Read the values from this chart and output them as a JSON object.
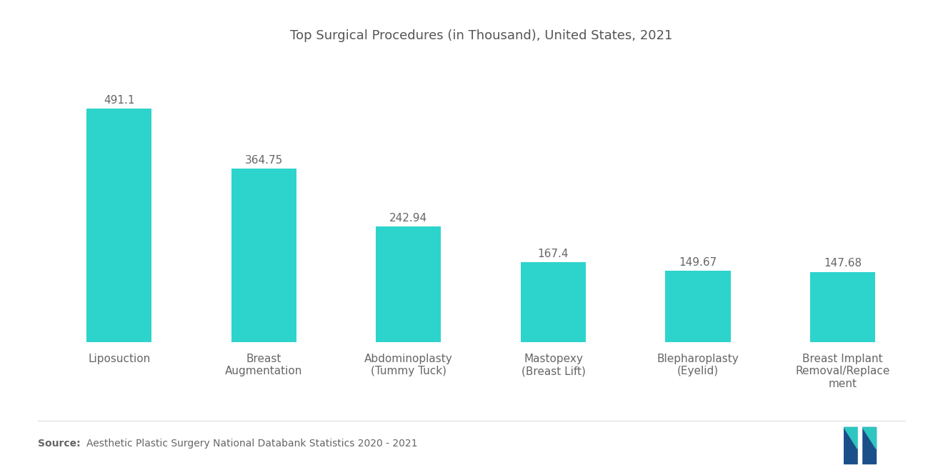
{
  "title": "Top Surgical Procedures (in Thousand), United States, 2021",
  "categories": [
    "Liposuction",
    "Breast\nAugmentation",
    "Abdominoplasty\n(Tummy Tuck)",
    "Mastopexy\n(Breast Lift)",
    "Blepharoplasty\n(Eyelid)",
    "Breast Implant\nRemoval/Replace\nment"
  ],
  "values": [
    491.1,
    364.75,
    242.94,
    167.4,
    149.67,
    147.68
  ],
  "bar_color": "#2DD4CC",
  "background_color": "#FFFFFF",
  "title_fontsize": 13,
  "label_fontsize": 11,
  "value_fontsize": 11,
  "source_bold": "Source:",
  "source_text": "  Aesthetic Plastic Surgery National Databank Statistics 2020 - 2021",
  "source_fontsize": 10,
  "ylim": [
    0,
    600
  ]
}
